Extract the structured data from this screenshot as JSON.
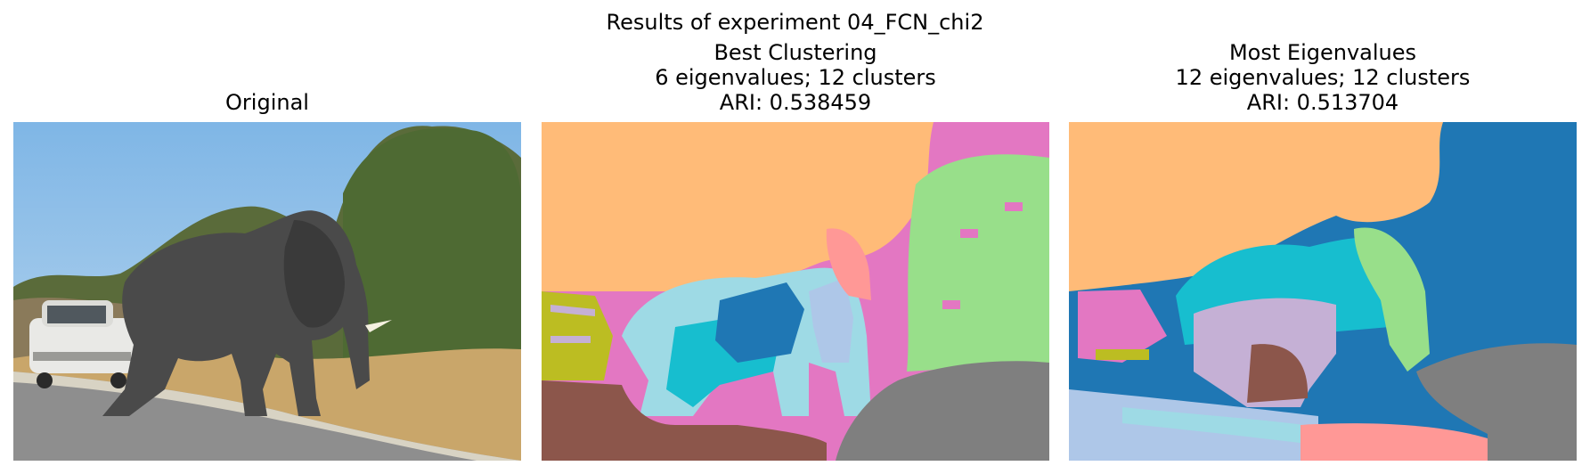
{
  "figure": {
    "suptitle": "Results of experiment 04_FCN_chi2"
  },
  "panels": [
    {
      "id": "original",
      "title_lines": [
        "Original"
      ],
      "image": "original-photo-elephant-crossing-road"
    },
    {
      "id": "best",
      "title_lines": [
        "Best Clustering",
        "6 eigenvalues; 12 clusters",
        "ARI: 0.538459"
      ],
      "image": "segmentation-map-best-clustering"
    },
    {
      "id": "most",
      "title_lines": [
        "Most Eigenvalues",
        "12 eigenvalues; 12 clusters",
        "ARI: 0.513704"
      ],
      "image": "segmentation-map-most-eigenvalues"
    }
  ],
  "palette": {
    "orange": "#ffbb78",
    "pink": "#e377c2",
    "green": "#98df8a",
    "olive": "#bcbd22",
    "light_cyan": "#9edae5",
    "cyan": "#17becf",
    "blue": "#1f77b4",
    "light_blue": "#aec7e8",
    "salmon": "#ff9896",
    "brown": "#8c564b",
    "gray": "#7f7f7f",
    "lavender": "#c5b0d5",
    "sky": "#8fc3ea",
    "elephant": "#4a4a4a"
  }
}
